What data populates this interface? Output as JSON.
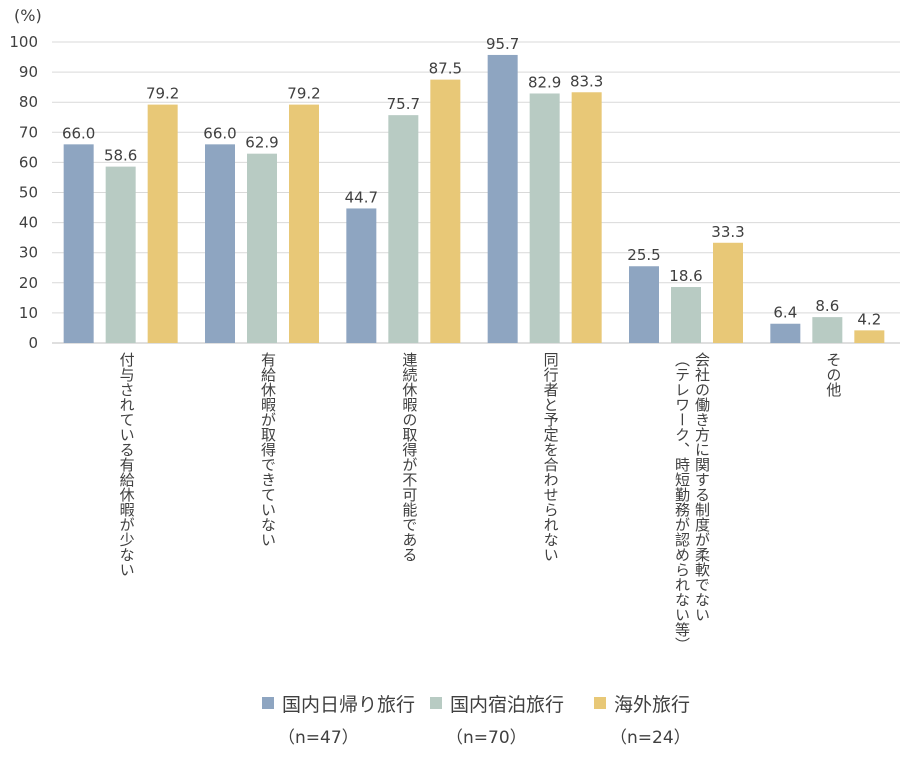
{
  "unit_label": "(%)",
  "chart_data": {
    "type": "bar",
    "ylim": [
      0,
      100
    ],
    "yticks": [
      "0",
      "10",
      "20",
      "30",
      "40",
      "50",
      "60",
      "70",
      "80",
      "90",
      "100"
    ],
    "grid": true,
    "legend_position": "bottom",
    "categories": [
      [
        "付与されている有給休暇が少ない"
      ],
      [
        "有給休暇が取得できていない"
      ],
      [
        "連続休暇の取得が不可能である"
      ],
      [
        "同行者と予定を合わせられない"
      ],
      [
        "会社の働き方に関する制度が柔軟でない",
        "（テレワーク、時短勤務が認められない等）"
      ],
      [
        "その他"
      ]
    ],
    "series": [
      {
        "name": "国内日帰り旅行",
        "n": "（n=47）",
        "color": "#8ea5c1",
        "values": [
          66.0,
          66.0,
          44.7,
          95.7,
          25.5,
          6.4
        ],
        "labels": [
          "66.0",
          "66.0",
          "44.7",
          "95.7",
          "25.5",
          "6.4"
        ]
      },
      {
        "name": "国内宿泊旅行",
        "n": "（n=70）",
        "color": "#b8cbc3",
        "values": [
          58.6,
          62.9,
          75.7,
          82.9,
          18.6,
          8.6
        ],
        "labels": [
          "58.6",
          "62.9",
          "75.7",
          "82.9",
          "18.6",
          "8.6"
        ]
      },
      {
        "name": "海外旅行",
        "n": "（n=24）",
        "color": "#e8c877",
        "values": [
          79.2,
          79.2,
          87.5,
          83.3,
          33.3,
          4.2
        ],
        "labels": [
          "79.2",
          "79.2",
          "87.5",
          "83.3",
          "33.3",
          "4.2"
        ]
      }
    ]
  }
}
